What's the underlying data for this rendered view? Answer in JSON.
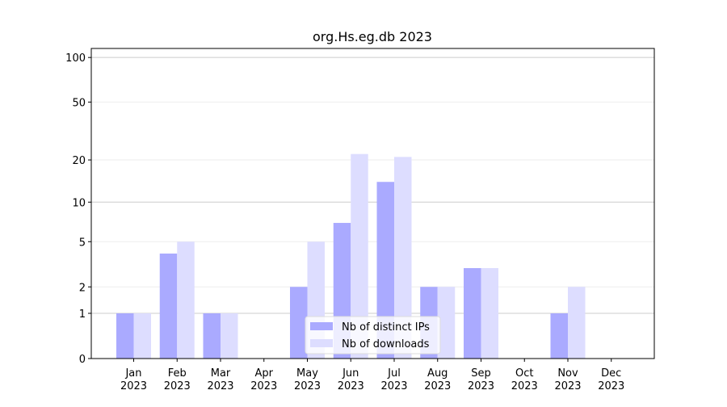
{
  "chart_data": {
    "type": "bar",
    "title": "org.Hs.eg.db 2023",
    "categories": [
      "Jan 2023",
      "Feb 2023",
      "Mar 2023",
      "Apr 2023",
      "May 2023",
      "Jun 2023",
      "Jul 2023",
      "Aug 2023",
      "Sep 2023",
      "Oct 2023",
      "Nov 2023",
      "Dec 2023"
    ],
    "series": [
      {
        "name": "Nb of distinct IPs",
        "color": "#aaaaff",
        "values": [
          1,
          4,
          1,
          0,
          2,
          7,
          14,
          2,
          3,
          0,
          1,
          0
        ]
      },
      {
        "name": "Nb of downloads",
        "color": "#ddddff",
        "values": [
          1,
          5,
          1,
          0,
          5,
          22,
          21,
          2,
          3,
          0,
          2,
          0
        ]
      }
    ],
    "yscale": "log1p",
    "ylim": [
      0,
      115
    ],
    "yticks": [
      0,
      1,
      2,
      5,
      10,
      20,
      50,
      100
    ],
    "grid": true,
    "legend": "lower center"
  }
}
